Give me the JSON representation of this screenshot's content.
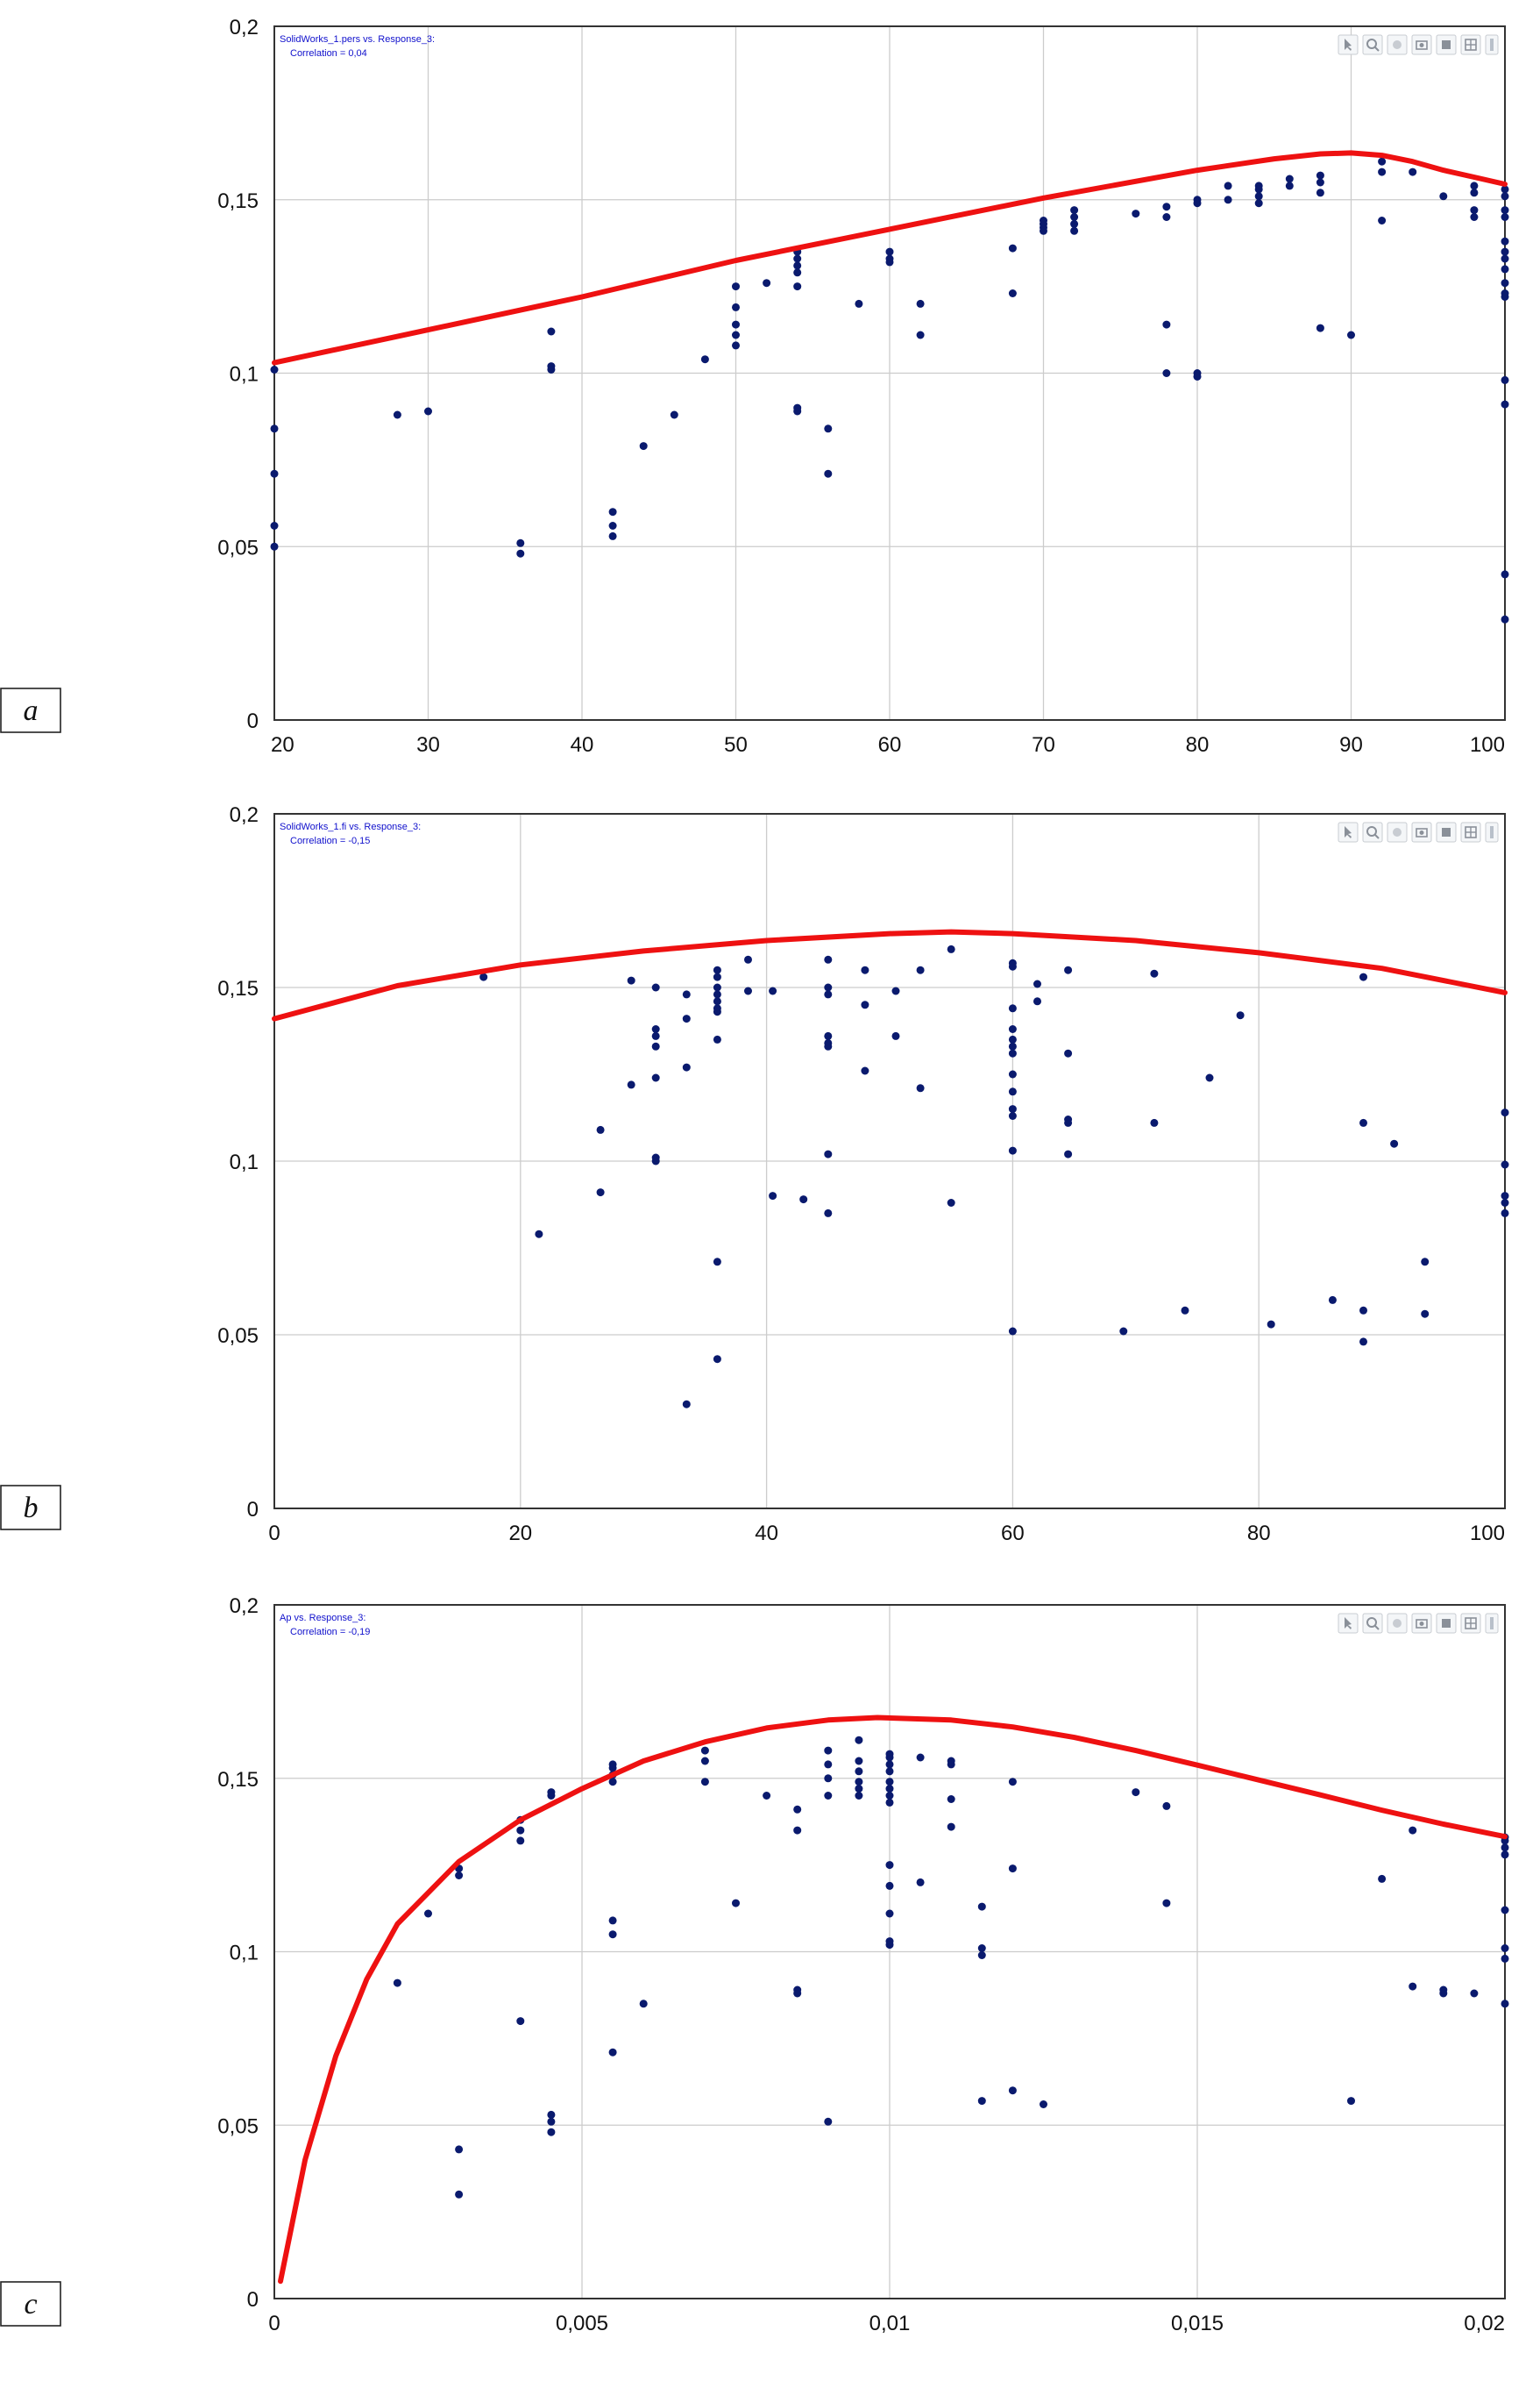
{
  "colors": {
    "points": "#0a1a6e",
    "curve": "#ee1111",
    "grid": "#cccccc",
    "frame": "#333333",
    "annotation": "#1010cc"
  },
  "toolbar_icons": [
    "pointer-icon",
    "zoom-icon",
    "pan-icon",
    "camera-icon",
    "save-icon",
    "grid-icon",
    "more-icon"
  ],
  "chart_data": [
    {
      "type": "scatter",
      "panel_label": "a",
      "annotation": [
        "SolidWorks_1.pers vs. Response_3:",
        "Correlation = 0,04"
      ],
      "xlim": [
        20,
        100
      ],
      "ylim": [
        0,
        0.2
      ],
      "x_ticks": [
        "20",
        "30",
        "40",
        "50",
        "60",
        "70",
        "80",
        "90",
        "100"
      ],
      "y_ticks": [
        "0",
        "0,05",
        "0,1",
        "0,15",
        "0,2"
      ],
      "grid": true,
      "points": [
        [
          20,
          0.101
        ],
        [
          20,
          0.084
        ],
        [
          20,
          0.071
        ],
        [
          20,
          0.056
        ],
        [
          20,
          0.05
        ],
        [
          28,
          0.088
        ],
        [
          30,
          0.089
        ],
        [
          36,
          0.051
        ],
        [
          36,
          0.048
        ],
        [
          38,
          0.112
        ],
        [
          38,
          0.102
        ],
        [
          38,
          0.101
        ],
        [
          42,
          0.06
        ],
        [
          42,
          0.056
        ],
        [
          42,
          0.053
        ],
        [
          44,
          0.079
        ],
        [
          46,
          0.088
        ],
        [
          48,
          0.104
        ],
        [
          50,
          0.125
        ],
        [
          50,
          0.119
        ],
        [
          50,
          0.114
        ],
        [
          50,
          0.111
        ],
        [
          50,
          0.108
        ],
        [
          52,
          0.126
        ],
        [
          54,
          0.135
        ],
        [
          54,
          0.133
        ],
        [
          54,
          0.131
        ],
        [
          54,
          0.129
        ],
        [
          54,
          0.125
        ],
        [
          54,
          0.09
        ],
        [
          54,
          0.089
        ],
        [
          56,
          0.084
        ],
        [
          56,
          0.071
        ],
        [
          58,
          0.12
        ],
        [
          60,
          0.135
        ],
        [
          60,
          0.133
        ],
        [
          60,
          0.132
        ],
        [
          62,
          0.12
        ],
        [
          62,
          0.111
        ],
        [
          68,
          0.136
        ],
        [
          68,
          0.123
        ],
        [
          70,
          0.144
        ],
        [
          70,
          0.143
        ],
        [
          70,
          0.142
        ],
        [
          70,
          0.141
        ],
        [
          72,
          0.147
        ],
        [
          72,
          0.145
        ],
        [
          72,
          0.143
        ],
        [
          72,
          0.141
        ],
        [
          76,
          0.146
        ],
        [
          78,
          0.148
        ],
        [
          78,
          0.145
        ],
        [
          78,
          0.114
        ],
        [
          78,
          0.1
        ],
        [
          80,
          0.15
        ],
        [
          80,
          0.149
        ],
        [
          80,
          0.1
        ],
        [
          80,
          0.099
        ],
        [
          82,
          0.154
        ],
        [
          82,
          0.15
        ],
        [
          84,
          0.154
        ],
        [
          84,
          0.153
        ],
        [
          84,
          0.151
        ],
        [
          84,
          0.149
        ],
        [
          86,
          0.156
        ],
        [
          86,
          0.154
        ],
        [
          88,
          0.157
        ],
        [
          88,
          0.155
        ],
        [
          88,
          0.152
        ],
        [
          88,
          0.113
        ],
        [
          90,
          0.111
        ],
        [
          92,
          0.161
        ],
        [
          92,
          0.158
        ],
        [
          92,
          0.144
        ],
        [
          94,
          0.158
        ],
        [
          96,
          0.151
        ],
        [
          98,
          0.154
        ],
        [
          98,
          0.152
        ],
        [
          98,
          0.147
        ],
        [
          98,
          0.145
        ],
        [
          100,
          0.153
        ],
        [
          100,
          0.151
        ],
        [
          100,
          0.147
        ],
        [
          100,
          0.145
        ],
        [
          100,
          0.138
        ],
        [
          100,
          0.135
        ],
        [
          100,
          0.133
        ],
        [
          100,
          0.13
        ],
        [
          100,
          0.126
        ],
        [
          100,
          0.123
        ],
        [
          100,
          0.122
        ],
        [
          100,
          0.098
        ],
        [
          100,
          0.091
        ],
        [
          100,
          0.042
        ],
        [
          100,
          0.029
        ]
      ],
      "curve": [
        [
          20,
          0.103
        ],
        [
          30,
          0.1125
        ],
        [
          40,
          0.122
        ],
        [
          50,
          0.1325
        ],
        [
          60,
          0.1415
        ],
        [
          70,
          0.1505
        ],
        [
          80,
          0.1585
        ],
        [
          85,
          0.1618
        ],
        [
          88,
          0.1632
        ],
        [
          90,
          0.1635
        ],
        [
          92,
          0.1628
        ],
        [
          94,
          0.161
        ],
        [
          96,
          0.1585
        ],
        [
          98,
          0.1565
        ],
        [
          100,
          0.1545
        ]
      ]
    },
    {
      "type": "scatter",
      "panel_label": "b",
      "annotation": [
        "SolidWorks_1.fi vs. Response_3:",
        "Correlation = -0,15"
      ],
      "xlim": [
        0,
        100
      ],
      "ylim": [
        0,
        0.2
      ],
      "x_ticks": [
        "0",
        "20",
        "40",
        "60",
        "80",
        "100"
      ],
      "y_ticks": [
        "0",
        "0,05",
        "0,1",
        "0,15",
        "0,2"
      ],
      "grid": true,
      "points": [
        [
          17,
          0.153
        ],
        [
          21.5,
          0.079
        ],
        [
          26.5,
          0.109
        ],
        [
          26.5,
          0.091
        ],
        [
          29,
          0.152
        ],
        [
          29,
          0.122
        ],
        [
          31,
          0.15
        ],
        [
          31,
          0.138
        ],
        [
          31,
          0.136
        ],
        [
          31,
          0.133
        ],
        [
          31,
          0.124
        ],
        [
          31,
          0.101
        ],
        [
          31,
          0.1
        ],
        [
          33.5,
          0.148
        ],
        [
          33.5,
          0.141
        ],
        [
          33.5,
          0.127
        ],
        [
          33.5,
          0.03
        ],
        [
          36,
          0.155
        ],
        [
          36,
          0.153
        ],
        [
          36,
          0.15
        ],
        [
          36,
          0.148
        ],
        [
          36,
          0.146
        ],
        [
          36,
          0.144
        ],
        [
          36,
          0.143
        ],
        [
          36,
          0.135
        ],
        [
          36,
          0.071
        ],
        [
          36,
          0.043
        ],
        [
          38.5,
          0.158
        ],
        [
          38.5,
          0.149
        ],
        [
          40.5,
          0.149
        ],
        [
          40.5,
          0.09
        ],
        [
          43,
          0.089
        ],
        [
          45,
          0.158
        ],
        [
          45,
          0.15
        ],
        [
          45,
          0.148
        ],
        [
          45,
          0.136
        ],
        [
          45,
          0.134
        ],
        [
          45,
          0.133
        ],
        [
          45,
          0.102
        ],
        [
          45,
          0.085
        ],
        [
          48,
          0.155
        ],
        [
          48,
          0.145
        ],
        [
          48,
          0.126
        ],
        [
          50.5,
          0.149
        ],
        [
          50.5,
          0.136
        ],
        [
          52.5,
          0.155
        ],
        [
          52.5,
          0.121
        ],
        [
          55,
          0.161
        ],
        [
          55,
          0.088
        ],
        [
          60,
          0.157
        ],
        [
          60,
          0.156
        ],
        [
          60,
          0.144
        ],
        [
          60,
          0.138
        ],
        [
          60,
          0.135
        ],
        [
          60,
          0.133
        ],
        [
          60,
          0.131
        ],
        [
          60,
          0.125
        ],
        [
          60,
          0.12
        ],
        [
          60,
          0.115
        ],
        [
          60,
          0.113
        ],
        [
          60,
          0.103
        ],
        [
          60,
          0.051
        ],
        [
          62,
          0.151
        ],
        [
          62,
          0.146
        ],
        [
          64.5,
          0.155
        ],
        [
          64.5,
          0.131
        ],
        [
          64.5,
          0.112
        ],
        [
          64.5,
          0.111
        ],
        [
          64.5,
          0.102
        ],
        [
          69,
          0.051
        ],
        [
          71.5,
          0.154
        ],
        [
          71.5,
          0.111
        ],
        [
          74,
          0.057
        ],
        [
          76,
          0.124
        ],
        [
          78.5,
          0.142
        ],
        [
          81,
          0.053
        ],
        [
          86,
          0.06
        ],
        [
          88.5,
          0.153
        ],
        [
          88.5,
          0.111
        ],
        [
          88.5,
          0.057
        ],
        [
          88.5,
          0.048
        ],
        [
          91,
          0.105
        ],
        [
          93.5,
          0.071
        ],
        [
          93.5,
          0.056
        ],
        [
          100,
          0.114
        ],
        [
          100,
          0.099
        ],
        [
          100,
          0.09
        ],
        [
          100,
          0.088
        ],
        [
          100,
          0.085
        ]
      ],
      "curve": [
        [
          0,
          0.141
        ],
        [
          10,
          0.1505
        ],
        [
          20,
          0.1565
        ],
        [
          30,
          0.1605
        ],
        [
          40,
          0.1635
        ],
        [
          50,
          0.1655
        ],
        [
          55,
          0.166
        ],
        [
          60,
          0.1655
        ],
        [
          70,
          0.1635
        ],
        [
          80,
          0.16
        ],
        [
          90,
          0.1555
        ],
        [
          100,
          0.1485
        ]
      ]
    },
    {
      "type": "scatter",
      "panel_label": "c",
      "annotation": [
        "Ap vs. Response_3:",
        "Correlation = -0,19"
      ],
      "xlim": [
        0,
        0.02
      ],
      "ylim": [
        0,
        0.2
      ],
      "x_ticks": [
        "0",
        "0,005",
        "0,01",
        "0,015",
        "0,02"
      ],
      "y_ticks": [
        "0",
        "0,05",
        "0,1",
        "0,15",
        "0,2"
      ],
      "x_tick_values": [
        0,
        0.005,
        0.01,
        0.015,
        0.02
      ],
      "grid": true,
      "points": [
        [
          0.002,
          0.091
        ],
        [
          0.0025,
          0.111
        ],
        [
          0.003,
          0.124
        ],
        [
          0.003,
          0.122
        ],
        [
          0.003,
          0.043
        ],
        [
          0.003,
          0.03
        ],
        [
          0.004,
          0.138
        ],
        [
          0.004,
          0.135
        ],
        [
          0.004,
          0.132
        ],
        [
          0.004,
          0.08
        ],
        [
          0.0045,
          0.146
        ],
        [
          0.0045,
          0.145
        ],
        [
          0.0045,
          0.053
        ],
        [
          0.0045,
          0.051
        ],
        [
          0.0045,
          0.048
        ],
        [
          0.0055,
          0.154
        ],
        [
          0.0055,
          0.153
        ],
        [
          0.0055,
          0.151
        ],
        [
          0.0055,
          0.149
        ],
        [
          0.0055,
          0.109
        ],
        [
          0.0055,
          0.105
        ],
        [
          0.0055,
          0.071
        ],
        [
          0.006,
          0.085
        ],
        [
          0.007,
          0.158
        ],
        [
          0.007,
          0.155
        ],
        [
          0.007,
          0.149
        ],
        [
          0.0075,
          0.114
        ],
        [
          0.008,
          0.145
        ],
        [
          0.0085,
          0.141
        ],
        [
          0.0085,
          0.135
        ],
        [
          0.0085,
          0.089
        ],
        [
          0.0085,
          0.088
        ],
        [
          0.009,
          0.158
        ],
        [
          0.009,
          0.154
        ],
        [
          0.009,
          0.15
        ],
        [
          0.009,
          0.145
        ],
        [
          0.009,
          0.051
        ],
        [
          0.0095,
          0.161
        ],
        [
          0.0095,
          0.155
        ],
        [
          0.0095,
          0.152
        ],
        [
          0.0095,
          0.149
        ],
        [
          0.0095,
          0.147
        ],
        [
          0.0095,
          0.145
        ],
        [
          0.01,
          0.157
        ],
        [
          0.01,
          0.156
        ],
        [
          0.01,
          0.154
        ],
        [
          0.01,
          0.152
        ],
        [
          0.01,
          0.149
        ],
        [
          0.01,
          0.147
        ],
        [
          0.01,
          0.145
        ],
        [
          0.01,
          0.143
        ],
        [
          0.01,
          0.125
        ],
        [
          0.01,
          0.119
        ],
        [
          0.01,
          0.111
        ],
        [
          0.01,
          0.103
        ],
        [
          0.01,
          0.102
        ],
        [
          0.0105,
          0.156
        ],
        [
          0.0105,
          0.12
        ],
        [
          0.011,
          0.155
        ],
        [
          0.011,
          0.154
        ],
        [
          0.011,
          0.144
        ],
        [
          0.011,
          0.136
        ],
        [
          0.0115,
          0.113
        ],
        [
          0.0115,
          0.101
        ],
        [
          0.0115,
          0.099
        ],
        [
          0.0115,
          0.057
        ],
        [
          0.012,
          0.149
        ],
        [
          0.012,
          0.124
        ],
        [
          0.012,
          0.06
        ],
        [
          0.0125,
          0.056
        ],
        [
          0.014,
          0.146
        ],
        [
          0.0145,
          0.142
        ],
        [
          0.0145,
          0.114
        ],
        [
          0.0175,
          0.057
        ],
        [
          0.018,
          0.121
        ],
        [
          0.0185,
          0.135
        ],
        [
          0.0185,
          0.09
        ],
        [
          0.019,
          0.089
        ],
        [
          0.019,
          0.088
        ],
        [
          0.0195,
          0.088
        ],
        [
          0.02,
          0.133
        ],
        [
          0.02,
          0.132
        ],
        [
          0.02,
          0.13
        ],
        [
          0.02,
          0.128
        ],
        [
          0.02,
          0.112
        ],
        [
          0.02,
          0.101
        ],
        [
          0.02,
          0.098
        ],
        [
          0.02,
          0.085
        ]
      ],
      "curve": [
        [
          0.0001,
          0.005
        ],
        [
          0.0005,
          0.04
        ],
        [
          0.001,
          0.07
        ],
        [
          0.0015,
          0.092
        ],
        [
          0.002,
          0.108
        ],
        [
          0.003,
          0.126
        ],
        [
          0.004,
          0.138
        ],
        [
          0.005,
          0.147
        ],
        [
          0.006,
          0.155
        ],
        [
          0.007,
          0.1605
        ],
        [
          0.008,
          0.1645
        ],
        [
          0.009,
          0.1668
        ],
        [
          0.0098,
          0.1675
        ],
        [
          0.011,
          0.1668
        ],
        [
          0.012,
          0.1648
        ],
        [
          0.013,
          0.1618
        ],
        [
          0.014,
          0.158
        ],
        [
          0.015,
          0.1538
        ],
        [
          0.016,
          0.1495
        ],
        [
          0.017,
          0.1452
        ],
        [
          0.018,
          0.1408
        ],
        [
          0.019,
          0.1368
        ],
        [
          0.02,
          0.1332
        ]
      ]
    }
  ]
}
